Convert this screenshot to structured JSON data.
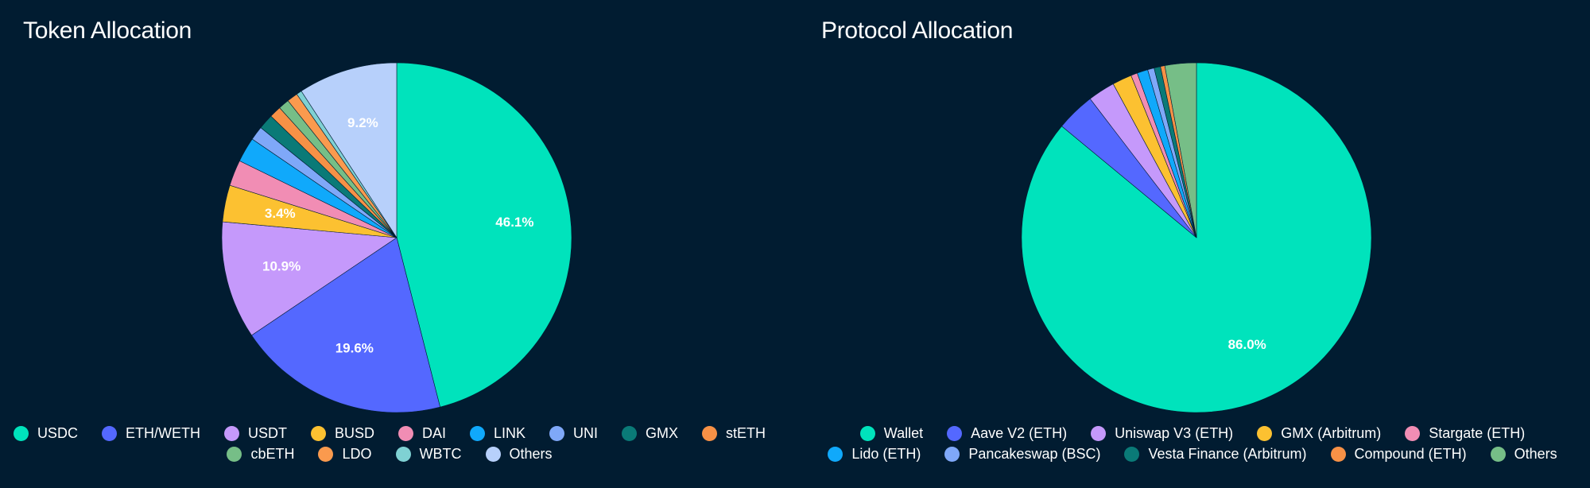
{
  "charts": [
    {
      "chart_data": {
        "type": "pie",
        "title": "Token Allocation",
        "slices": [
          {
            "label": "USDC",
            "value": 46.1,
            "color": "#00e3bc",
            "value_label": "46.1%"
          },
          {
            "label": "ETH/WETH",
            "value": 19.6,
            "color": "#5468ff",
            "value_label": "19.6%"
          },
          {
            "label": "USDT",
            "value": 10.9,
            "color": "#c599fb",
            "value_label": "10.9%"
          },
          {
            "label": "BUSD",
            "value": 3.4,
            "color": "#fcc131",
            "value_label": "3.4%"
          },
          {
            "label": "DAI",
            "value": 2.4,
            "color": "#f18db4",
            "value_label": ""
          },
          {
            "label": "LINK",
            "value": 2.3,
            "color": "#10a9fb",
            "value_label": ""
          },
          {
            "label": "UNI",
            "value": 1.3,
            "color": "#7fa8f8",
            "value_label": ""
          },
          {
            "label": "GMX",
            "value": 1.4,
            "color": "#0a7a77",
            "value_label": ""
          },
          {
            "label": "stETH",
            "value": 1.1,
            "color": "#f79146",
            "value_label": ""
          },
          {
            "label": "cbETH",
            "value": 1.0,
            "color": "#76be87",
            "value_label": ""
          },
          {
            "label": "LDO",
            "value": 1.0,
            "color": "#fa9a4e",
            "value_label": ""
          },
          {
            "label": "WBTC",
            "value": 0.5,
            "color": "#7fd1d3",
            "value_label": ""
          },
          {
            "label": "Others",
            "value": 9.2,
            "color": "#b7d0fb",
            "value_label": "9.2%"
          }
        ],
        "legend_position": "bottom"
      }
    },
    {
      "chart_data": {
        "type": "pie",
        "title": "Protocol Allocation",
        "slices": [
          {
            "label": "Wallet",
            "value": 86.0,
            "color": "#00e3bc",
            "value_label": "86.0%"
          },
          {
            "label": "Aave V2 (ETH)",
            "value": 3.6,
            "color": "#5468ff",
            "value_label": ""
          },
          {
            "label": "Uniswap V3 (ETH)",
            "value": 2.5,
            "color": "#c599fb",
            "value_label": ""
          },
          {
            "label": "GMX (Arbitrum)",
            "value": 1.8,
            "color": "#fcc131",
            "value_label": ""
          },
          {
            "label": "Stargate (ETH)",
            "value": 0.6,
            "color": "#f18db4",
            "value_label": ""
          },
          {
            "label": "Lido (ETH)",
            "value": 1.0,
            "color": "#10a9fb",
            "value_label": ""
          },
          {
            "label": "Pancakeswap (BSC)",
            "value": 0.6,
            "color": "#7fa8f8",
            "value_label": ""
          },
          {
            "label": "Vesta Finance (Arbitrum)",
            "value": 0.6,
            "color": "#0a7a77",
            "value_label": ""
          },
          {
            "label": "Compound (ETH)",
            "value": 0.4,
            "color": "#f79146",
            "value_label": ""
          },
          {
            "label": "Others",
            "value": 2.9,
            "color": "#76be87",
            "value_label": ""
          }
        ],
        "legend_position": "bottom"
      }
    }
  ]
}
